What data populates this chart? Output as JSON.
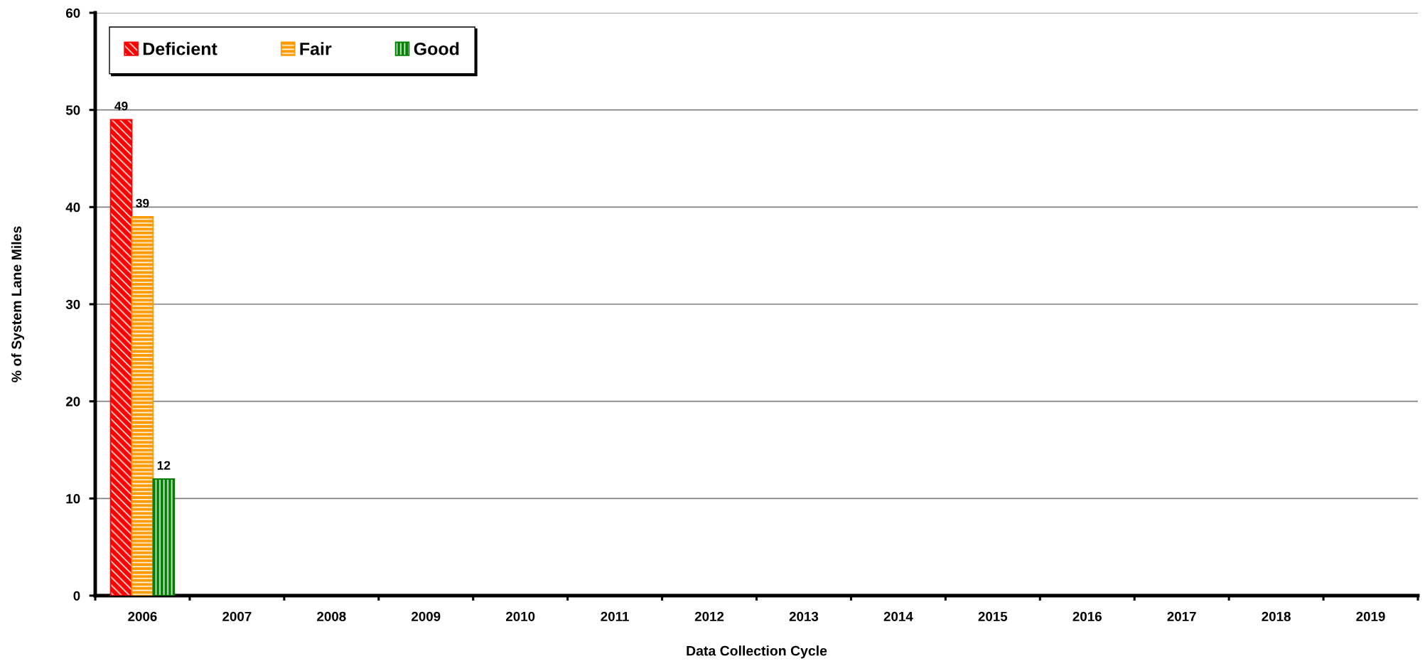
{
  "chart_data": {
    "type": "bar",
    "xlabel": "Data Collection Cycle",
    "ylabel": "% of System Lane Miles",
    "categories": [
      "2006",
      "2007",
      "2008",
      "2009",
      "2010",
      "2011",
      "2012",
      "2013",
      "2014",
      "2015",
      "2016",
      "2017",
      "2018",
      "2019"
    ],
    "series": [
      {
        "name": "Deficient",
        "color": "#ff0000",
        "values": [
          49,
          null,
          null,
          null,
          null,
          null,
          null,
          null,
          null,
          null,
          null,
          null,
          null,
          null
        ]
      },
      {
        "name": "Fair",
        "color": "#ff9900",
        "values": [
          39,
          null,
          null,
          null,
          null,
          null,
          null,
          null,
          null,
          null,
          null,
          null,
          null,
          null
        ]
      },
      {
        "name": "Good",
        "color": "#008000",
        "values": [
          12,
          null,
          null,
          null,
          null,
          null,
          null,
          null,
          null,
          null,
          null,
          null,
          null,
          null
        ]
      }
    ],
    "ylim": [
      0,
      60
    ],
    "yticks": [
      0,
      10,
      20,
      30,
      40,
      50,
      60
    ],
    "grid": "y",
    "legend": "top left",
    "data_labels": true
  }
}
